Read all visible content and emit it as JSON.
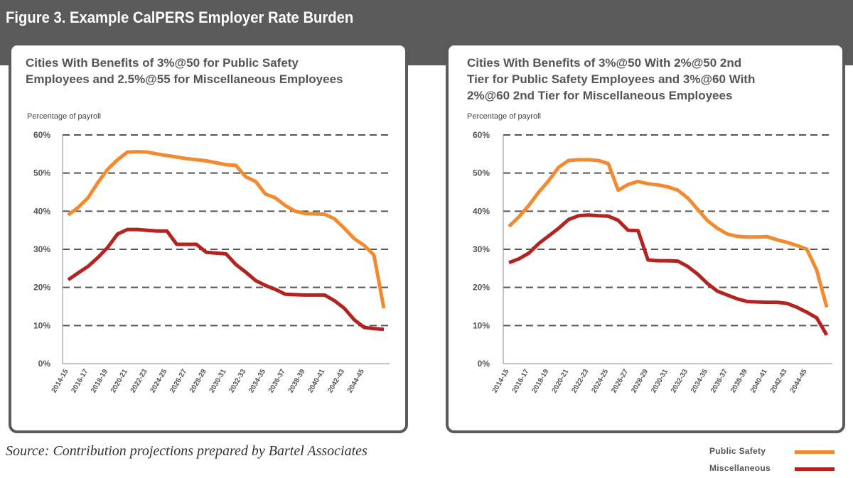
{
  "figure": {
    "title": "Figure 3. Example CalPERS Employer Rate Burden",
    "source": "Source: Contribution projections prepared by Bartel Associates"
  },
  "legend": {
    "items": [
      {
        "label": "Public Safety",
        "color": "#f28b30"
      },
      {
        "label": "Miscellaneous",
        "color": "#b3231f"
      }
    ]
  },
  "chart_data": [
    {
      "type": "line",
      "title_lines": [
        "Cities With Benefits of 3%@50 for Public Safety",
        "Employees and 2.5%@55 for Miscellaneous Employees"
      ],
      "ylabel": "Percentage of payroll",
      "ylim": [
        0,
        60
      ],
      "yticks": [
        "0%",
        "10%",
        "20%",
        "30%",
        "40%",
        "50%",
        "60%"
      ],
      "xticks": [
        "2014-15",
        "2016-17",
        "2018-19",
        "2020-21",
        "2022-23",
        "2024-25",
        "2026-27",
        "2028-29",
        "2030-31",
        "2032-33",
        "2034-35",
        "2036-37",
        "2038-39",
        "2040-41",
        "2042-43",
        "2044-45"
      ],
      "grid": "horizontal-dashed",
      "series": [
        {
          "name": "Public Safety",
          "color": "#f28b30",
          "values": [
            39,
            41,
            43.5,
            47.5,
            51,
            53.5,
            55.5,
            55.6,
            55.5,
            55,
            54.6,
            54.2,
            53.8,
            53.5,
            53.2,
            52.7,
            52.2,
            52,
            49,
            47.8,
            44.5,
            43.5,
            41.5,
            40,
            39.4,
            39.3,
            39.2,
            38,
            35.5,
            32.8,
            31,
            28.5,
            14.5
          ]
        },
        {
          "name": "Miscellaneous",
          "color": "#b3231f",
          "values": [
            22,
            23.8,
            25.5,
            27.8,
            30.5,
            34,
            35.2,
            35.2,
            35,
            34.8,
            34.8,
            31.3,
            31.3,
            31.3,
            29.2,
            29,
            28.8,
            26,
            24,
            21.8,
            20.5,
            19.5,
            18.2,
            18.1,
            18,
            18,
            18,
            16.5,
            14.5,
            11.5,
            9.5,
            9.2,
            9.0
          ]
        }
      ]
    },
    {
      "type": "line",
      "title_lines": [
        "Cities With Benefits of 3%@50 With 2%@50 2nd",
        "Tier for Public Safety Employees and 3%@60 With",
        "2%@60 2nd Tier for Miscellaneous Employees"
      ],
      "ylabel": "Percentage of payroll",
      "ylim": [
        0,
        60
      ],
      "yticks": [
        "0%",
        "10%",
        "20%",
        "30%",
        "40%",
        "50%",
        "60%"
      ],
      "xticks": [
        "2014-15",
        "2016-17",
        "2018-19",
        "2020-21",
        "2022-23",
        "2024-25",
        "2026-27",
        "2028-29",
        "2030-31",
        "2032-33",
        "2034-35",
        "2036-37",
        "2038-39",
        "2040-41",
        "2042-43",
        "2044-45"
      ],
      "grid": "horizontal-dashed",
      "series": [
        {
          "name": "Public Safety",
          "color": "#f28b30",
          "values": [
            36,
            38.5,
            41.5,
            45,
            48,
            51.5,
            53.3,
            53.5,
            53.5,
            53.3,
            52.5,
            45.5,
            47,
            47.8,
            47.2,
            46.9,
            46.4,
            45.5,
            43.5,
            40.5,
            37.5,
            35.5,
            34,
            33.4,
            33.2,
            33.2,
            33.3,
            32.5,
            31.8,
            31,
            30,
            24.5,
            14.8
          ]
        },
        {
          "name": "Miscellaneous",
          "color": "#b3231f",
          "values": [
            26.5,
            27.5,
            29,
            31.5,
            33.5,
            35.5,
            37.8,
            38.8,
            39,
            38.8,
            38.7,
            37.6,
            35,
            34.9,
            27.2,
            27,
            27,
            26.9,
            25.5,
            23.5,
            21,
            19,
            18,
            17,
            16.3,
            16.2,
            16.1,
            16.1,
            15.8,
            14.8,
            13.5,
            12,
            7.5
          ]
        }
      ]
    }
  ]
}
